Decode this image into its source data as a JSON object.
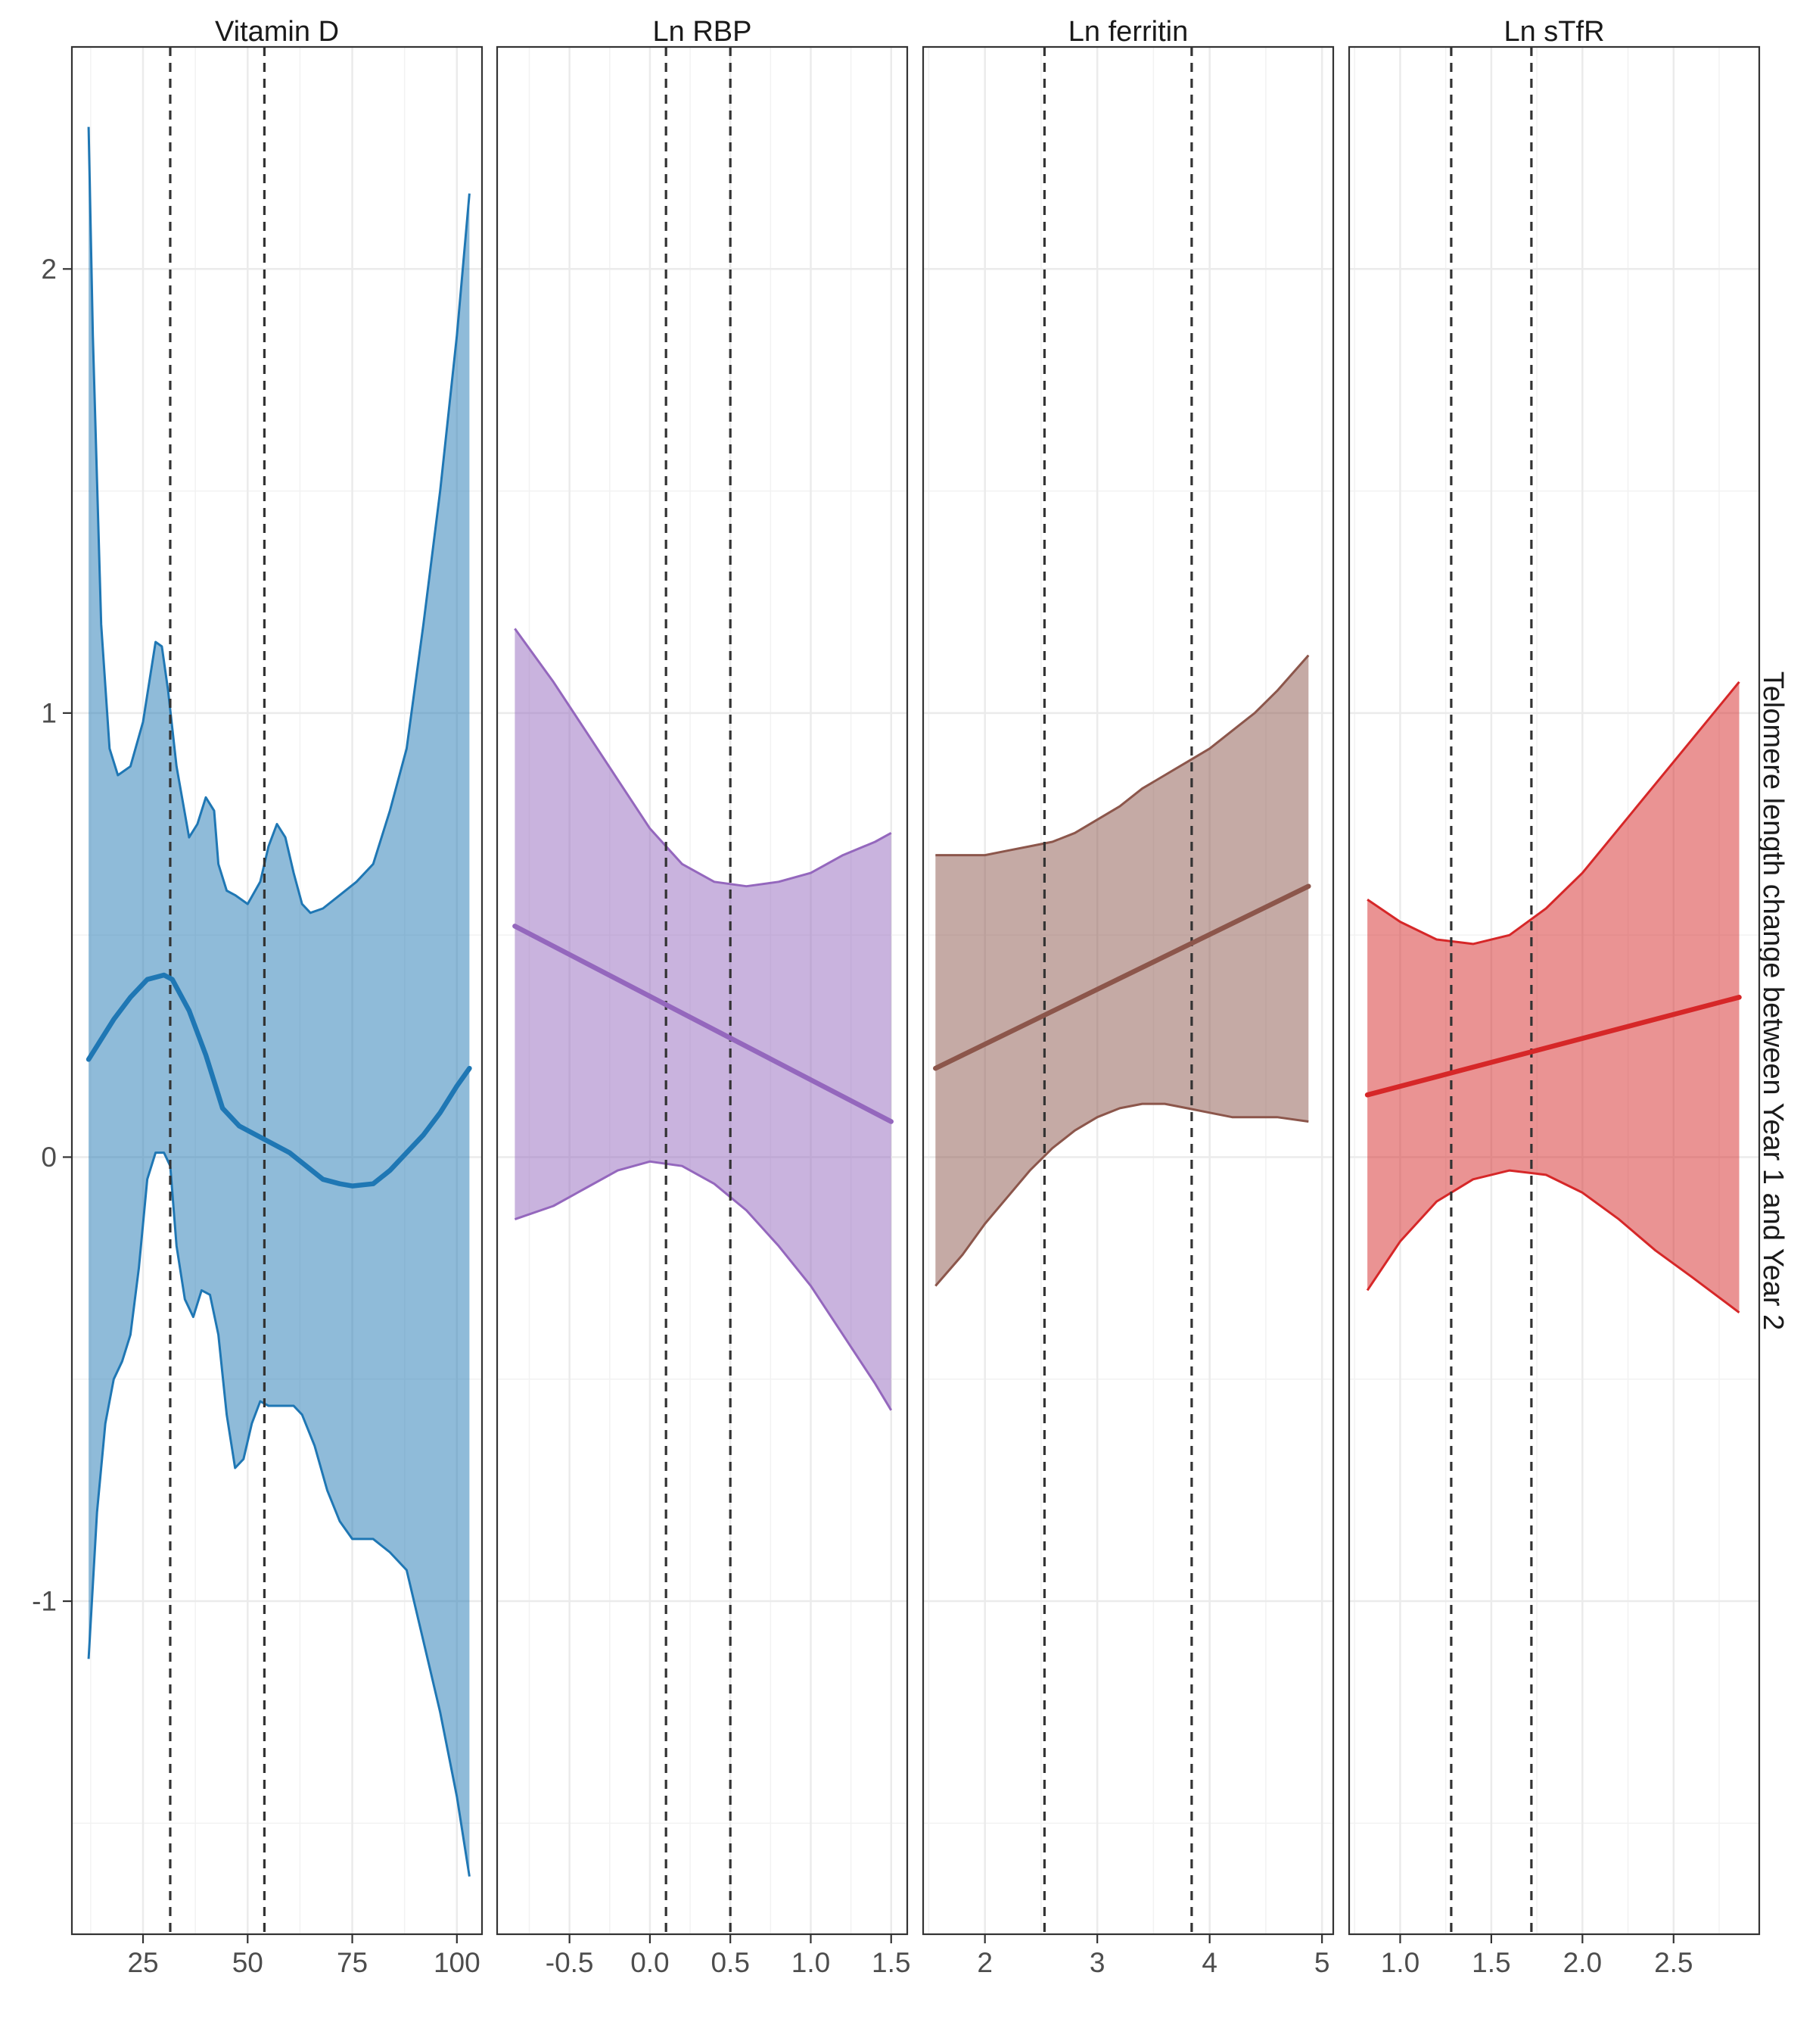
{
  "chart_data": {
    "type": "line",
    "ylabel": "Telomere length change between Year 1 and Year 2",
    "ylim": [
      -1.75,
      2.5
    ],
    "yticks": [
      -1,
      0,
      1,
      2
    ],
    "ytick_labels": [
      "-1",
      "0",
      "1",
      "2"
    ],
    "grid": true,
    "panels": [
      {
        "title": "Vitamin D",
        "color": "#1f77b4",
        "xlim": [
          8,
          106
        ],
        "xticks": [
          25,
          50,
          75,
          100
        ],
        "xtick_labels": [
          "25",
          "50",
          "75",
          "100"
        ],
        "vlines": [
          31.5,
          54
        ],
        "fit": {
          "x": [
            12,
            18,
            22,
            26,
            30,
            32,
            36,
            40,
            44,
            48,
            52,
            56,
            60,
            64,
            68,
            72,
            75,
            80,
            84,
            88,
            92,
            96,
            100,
            103
          ],
          "y": [
            0.22,
            0.31,
            0.36,
            0.4,
            0.41,
            0.4,
            0.33,
            0.23,
            0.11,
            0.07,
            0.05,
            0.03,
            0.01,
            -0.02,
            -0.05,
            -0.06,
            -0.065,
            -0.06,
            -0.03,
            0.01,
            0.05,
            0.1,
            0.16,
            0.2
          ]
        },
        "upper": {
          "x": [
            12,
            13,
            15,
            17,
            19,
            22,
            25,
            28,
            29.5,
            31,
            33,
            36,
            38,
            40,
            42,
            43,
            45,
            47,
            50,
            53,
            55,
            57,
            59,
            61,
            63,
            65,
            68,
            72,
            76,
            80,
            84,
            88,
            92,
            96,
            100,
            103
          ],
          "y": [
            2.32,
            1.85,
            1.2,
            0.92,
            0.86,
            0.88,
            0.98,
            1.16,
            1.15,
            1.05,
            0.88,
            0.72,
            0.75,
            0.81,
            0.78,
            0.66,
            0.6,
            0.59,
            0.57,
            0.62,
            0.7,
            0.75,
            0.72,
            0.64,
            0.57,
            0.55,
            0.56,
            0.59,
            0.62,
            0.66,
            0.78,
            0.92,
            1.2,
            1.5,
            1.85,
            2.17
          ]
        },
        "lower": {
          "x": [
            12,
            14,
            16,
            18,
            20,
            22,
            24,
            26,
            28,
            30,
            31.5,
            33,
            35,
            37,
            39,
            41,
            43,
            45,
            47,
            49,
            51,
            53,
            55,
            57,
            59,
            61,
            63,
            66,
            69,
            72,
            75,
            78,
            80,
            84,
            88,
            92,
            96,
            100,
            103
          ],
          "y": [
            -1.13,
            -0.8,
            -0.6,
            -0.5,
            -0.46,
            -0.4,
            -0.25,
            -0.05,
            0.01,
            0.01,
            -0.02,
            -0.2,
            -0.32,
            -0.36,
            -0.3,
            -0.31,
            -0.4,
            -0.58,
            -0.7,
            -0.68,
            -0.6,
            -0.55,
            -0.56,
            -0.56,
            -0.56,
            -0.56,
            -0.58,
            -0.65,
            -0.75,
            -0.82,
            -0.86,
            -0.86,
            -0.86,
            -0.89,
            -0.93,
            -1.09,
            -1.25,
            -1.44,
            -1.62
          ]
        }
      },
      {
        "title": "Ln RBP",
        "color": "#9467bd",
        "xlim": [
          -0.95,
          1.6
        ],
        "xticks": [
          -0.5,
          0.0,
          0.5,
          1.0,
          1.5
        ],
        "xtick_labels": [
          "-0.5",
          "0.0",
          "0.5",
          "1.0",
          "1.5"
        ],
        "vlines": [
          0.1,
          0.5
        ],
        "fit": {
          "x": [
            -0.84,
            1.5
          ],
          "y": [
            0.52,
            0.08
          ]
        },
        "upper": {
          "x": [
            -0.84,
            -0.6,
            -0.4,
            -0.2,
            0.0,
            0.2,
            0.4,
            0.6,
            0.8,
            1.0,
            1.2,
            1.4,
            1.5
          ],
          "y": [
            1.19,
            1.07,
            0.96,
            0.85,
            0.74,
            0.66,
            0.62,
            0.61,
            0.62,
            0.64,
            0.68,
            0.71,
            0.73
          ]
        },
        "lower": {
          "x": [
            -0.84,
            -0.6,
            -0.4,
            -0.2,
            0.0,
            0.2,
            0.4,
            0.6,
            0.8,
            1.0,
            1.2,
            1.4,
            1.5
          ],
          "y": [
            -0.14,
            -0.11,
            -0.07,
            -0.03,
            -0.01,
            -0.02,
            -0.06,
            -0.12,
            -0.2,
            -0.29,
            -0.4,
            -0.51,
            -0.57
          ]
        }
      },
      {
        "title": "Ln ferritin",
        "color": "#8c564b",
        "xlim": [
          1.45,
          5.1
        ],
        "xticks": [
          2,
          3,
          4,
          5
        ],
        "xtick_labels": [
          "2",
          "3",
          "4",
          "5"
        ],
        "vlines": [
          2.53,
          3.84
        ],
        "fit": {
          "x": [
            1.56,
            4.88
          ],
          "y": [
            0.2,
            0.61
          ]
        },
        "upper": {
          "x": [
            1.56,
            1.8,
            2.0,
            2.2,
            2.4,
            2.6,
            2.8,
            3.0,
            3.2,
            3.4,
            3.6,
            3.8,
            4.0,
            4.2,
            4.4,
            4.6,
            4.88
          ],
          "y": [
            0.68,
            0.68,
            0.68,
            0.69,
            0.7,
            0.71,
            0.73,
            0.76,
            0.79,
            0.83,
            0.86,
            0.89,
            0.92,
            0.96,
            1.0,
            1.05,
            1.13
          ]
        },
        "lower": {
          "x": [
            1.56,
            1.8,
            2.0,
            2.2,
            2.4,
            2.6,
            2.8,
            3.0,
            3.2,
            3.4,
            3.6,
            3.8,
            4.0,
            4.2,
            4.4,
            4.6,
            4.88
          ],
          "y": [
            -0.29,
            -0.22,
            -0.15,
            -0.09,
            -0.03,
            0.02,
            0.06,
            0.09,
            0.11,
            0.12,
            0.12,
            0.11,
            0.1,
            0.09,
            0.09,
            0.09,
            0.08
          ]
        }
      },
      {
        "title": "Ln sTfR",
        "color": "#d62728",
        "xlim": [
          0.72,
          2.97
        ],
        "xticks": [
          1.0,
          1.5,
          2.0,
          2.5
        ],
        "xtick_labels": [
          "1.0",
          "1.5",
          "2.0",
          "2.5"
        ],
        "vlines": [
          1.28,
          1.72
        ],
        "fit": {
          "x": [
            0.82,
            2.86
          ],
          "y": [
            0.14,
            0.36
          ]
        },
        "upper": {
          "x": [
            0.82,
            1.0,
            1.2,
            1.4,
            1.6,
            1.8,
            2.0,
            2.2,
            2.4,
            2.6,
            2.86
          ],
          "y": [
            0.58,
            0.53,
            0.49,
            0.48,
            0.5,
            0.56,
            0.64,
            0.74,
            0.84,
            0.94,
            1.07
          ]
        },
        "lower": {
          "x": [
            0.82,
            1.0,
            1.2,
            1.4,
            1.6,
            1.8,
            2.0,
            2.2,
            2.4,
            2.6,
            2.86
          ],
          "y": [
            -0.3,
            -0.19,
            -0.1,
            -0.05,
            -0.03,
            -0.04,
            -0.08,
            -0.14,
            -0.21,
            -0.27,
            -0.35
          ]
        }
      }
    ]
  }
}
